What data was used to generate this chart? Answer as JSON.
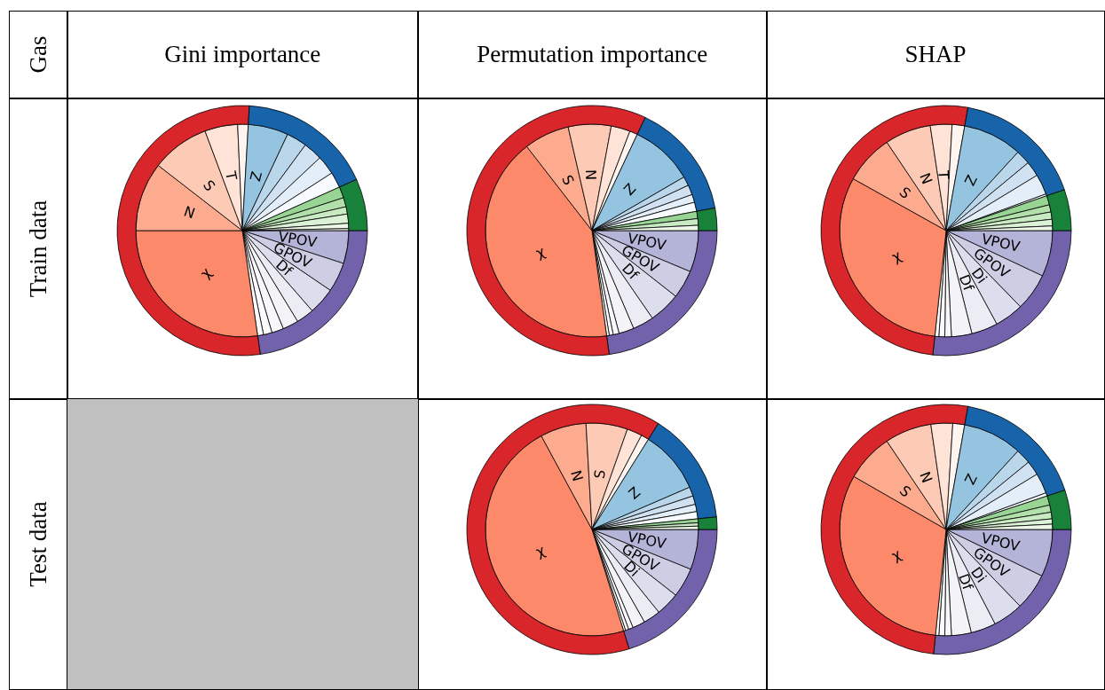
{
  "chart_data": [
    {
      "type": "other",
      "annotations": [
        "Gas",
        "Gini importance",
        "Permutation importance",
        "SHAP",
        "Train data",
        "Test data"
      ]
    },
    {
      "type": "pie",
      "categories": [
        "VPOV",
        "GPOV",
        "Df",
        null,
        null,
        null,
        null,
        null,
        "χ",
        "N",
        "S",
        "T",
        null,
        "Z",
        null,
        null,
        null,
        null,
        null,
        null,
        null,
        null,
        null,
        null
      ],
      "values": [
        5.0,
        4.5,
        4.1,
        2.7,
        2.4,
        1.8,
        1.3,
        0.9,
        27.3,
        10.5,
        8.8,
        5.0,
        1.6,
        6.1,
        3.1,
        2.9,
        2.9,
        2.4,
        1.7,
        1.4,
        1.1,
        1.4,
        0.8,
        0.3
      ],
      "colors": [
        "#b4b3d8",
        "#cdcde4",
        "#dddeed",
        "#ececf4",
        "#f4f3f8",
        "#f8f7fb",
        "#fbfafc",
        "#fcfbfd",
        "#fc8a6a",
        "#fcab8f",
        "#fdcab5",
        "#fee3d6",
        "#fff5f0",
        "#94c4df",
        "#b9d6ea",
        "#d0e1f2",
        "#e3eef9",
        "#f7fbff",
        "#98d594",
        "#b2e0ab",
        "#caeac3",
        "#dcf2d7",
        "#edf8e9",
        "#f7fcf5"
      ]
    },
    {
      "type": "donut",
      "categories": [
        null,
        null,
        null,
        null
      ],
      "values": [
        22.7,
        53.2,
        17.4,
        6.7
      ],
      "colors": [
        "#7262ac",
        "#d9262a",
        "#1764ab",
        "#18823b"
      ]
    },
    {
      "type": "pie",
      "categories": [
        "VPOV",
        "GPOV",
        "Df",
        null,
        null,
        null,
        null,
        null,
        "χ",
        "S",
        "N",
        null,
        null,
        "Z",
        null,
        null,
        null,
        null,
        null,
        null,
        null
      ],
      "values": [
        6.3,
        4.3,
        4.8,
        3.2,
        2.3,
        0.9,
        0.6,
        0.4,
        41.7,
        6.9,
        6.5,
        2.9,
        1.2,
        9.6,
        1.4,
        1.5,
        1.2,
        1.4,
        1.1,
        1.0,
        0.8
      ],
      "colors": [
        "#b4b3d8",
        "#cdcde4",
        "#dddeed",
        "#ececf4",
        "#f4f3f8",
        "#f8f7fb",
        "#fbfafc",
        "#fcfbfd",
        "#fc8a6a",
        "#fcab8f",
        "#fdcab5",
        "#fee3d6",
        "#fff5f0",
        "#94c4df",
        "#b9d6ea",
        "#d0e1f2",
        "#e3eef9",
        "#f7fbff",
        "#98d594",
        "#caeac3",
        "#edf8e9"
      ]
    },
    {
      "type": "donut",
      "categories": [
        null,
        null,
        null,
        null
      ],
      "values": [
        22.8,
        59.2,
        15.1,
        2.9
      ],
      "colors": [
        "#7262ac",
        "#d9262a",
        "#1764ab",
        "#18823b"
      ]
    },
    {
      "type": "pie",
      "categories": [
        "VPOV",
        "GPOV",
        "Di",
        "Df",
        null,
        null,
        null,
        null,
        "χ",
        "S",
        "N",
        "T",
        null,
        "Z",
        null,
        null,
        null,
        null,
        null,
        null,
        null,
        null,
        null
      ],
      "values": [
        7.0,
        5.7,
        4.4,
        4.0,
        3.1,
        1.0,
        0.9,
        0.6,
        31.4,
        7.5,
        7.0,
        3.3,
        1.9,
        9.0,
        2.2,
        2.3,
        3.1,
        0.3,
        1.4,
        1.1,
        1.1,
        1.0,
        0.7
      ],
      "colors": [
        "#b4b3d8",
        "#cdcde4",
        "#dddeed",
        "#ececf4",
        "#f4f3f8",
        "#f8f7fb",
        "#fbfafc",
        "#fcfbfd",
        "#fc8a6a",
        "#fcab8f",
        "#fdcab5",
        "#fee3d6",
        "#fff5f0",
        "#94c4df",
        "#b9d6ea",
        "#d0e1f2",
        "#e3eef9",
        "#f7fbff",
        "#98d594",
        "#b2e0ab",
        "#caeac3",
        "#dcf2d7",
        "#edf8e9"
      ]
    },
    {
      "type": "donut",
      "categories": [
        null,
        null,
        null,
        null
      ],
      "values": [
        26.7,
        51.1,
        16.9,
        5.3
      ],
      "colors": [
        "#7262ac",
        "#d9262a",
        "#1764ab",
        "#18823b"
      ]
    },
    {
      "type": "pie",
      "categories": [
        "VPOV",
        "GPOV",
        "Di",
        null,
        null,
        null,
        null,
        null,
        "χ",
        "N",
        "S",
        null,
        null,
        "Z",
        null,
        null,
        null,
        null,
        null,
        null,
        null
      ],
      "values": [
        6.1,
        4.5,
        3.6,
        2.6,
        1.9,
        0.7,
        0.5,
        0.3,
        46.9,
        7.0,
        6.3,
        2.3,
        1.2,
        9.6,
        1.4,
        1.3,
        1.1,
        1.1,
        0.6,
        0.5,
        0.5
      ],
      "colors": [
        "#b4b3d8",
        "#cdcde4",
        "#dddeed",
        "#ececf4",
        "#f4f3f8",
        "#f8f7fb",
        "#fbfafc",
        "#fcfbfd",
        "#fc8a6a",
        "#fcab8f",
        "#fdcab5",
        "#fee3d6",
        "#fff5f0",
        "#94c4df",
        "#b9d6ea",
        "#d0e1f2",
        "#e3eef9",
        "#f7fbff",
        "#98d594",
        "#caeac3",
        "#edf8e9"
      ]
    },
    {
      "type": "donut",
      "categories": [
        null,
        null,
        null,
        null
      ],
      "values": [
        20.2,
        63.7,
        14.5,
        1.6
      ],
      "colors": [
        "#7262ac",
        "#d9262a",
        "#1764ab",
        "#18823b"
      ]
    },
    {
      "type": "pie",
      "categories": [
        "VPOV",
        "GPOV",
        "Di",
        "Df",
        null,
        null,
        null,
        null,
        "χ",
        "S",
        "N",
        null,
        null,
        "Z",
        null,
        null,
        null,
        null,
        null,
        null,
        null,
        null,
        null
      ],
      "values": [
        7.2,
        5.6,
        4.6,
        3.8,
        3.0,
        1.0,
        0.9,
        0.5,
        31.7,
        7.3,
        7.1,
        3.3,
        1.8,
        9.0,
        2.3,
        2.2,
        3.1,
        0.5,
        1.4,
        1.1,
        1.0,
        0.8,
        0.8
      ],
      "colors": [
        "#b4b3d8",
        "#cdcde4",
        "#dddeed",
        "#ececf4",
        "#f4f3f8",
        "#f8f7fb",
        "#fbfafc",
        "#fcfbfd",
        "#fc8a6a",
        "#fcab8f",
        "#fdcab5",
        "#fee3d6",
        "#fff5f0",
        "#94c4df",
        "#b9d6ea",
        "#d0e1f2",
        "#e3eef9",
        "#f7fbff",
        "#98d594",
        "#b2e0ab",
        "#caeac3",
        "#dcf2d7",
        "#edf8e9"
      ]
    },
    {
      "type": "donut",
      "categories": [
        null,
        null,
        null,
        null
      ],
      "values": [
        26.6,
        51.2,
        17.1,
        5.1
      ],
      "colors": [
        "#7262ac",
        "#d9262a",
        "#1764ab",
        "#18823b"
      ]
    }
  ]
}
